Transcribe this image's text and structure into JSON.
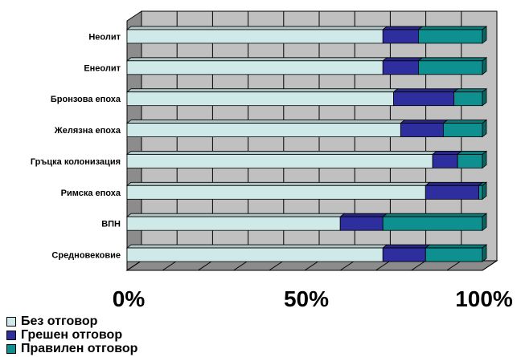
{
  "chart_data": {
    "type": "bar",
    "orientation": "horizontal",
    "stacked": "percent",
    "three_d": true,
    "categories": [
      "Неолит",
      "Енеолит",
      "Бронзова епоха",
      "Желязна епоха",
      "Гръцка колонизация",
      "Римска епоха",
      "ВПН",
      "Средновековие"
    ],
    "series": [
      {
        "name": "Без отговор",
        "color": "#cfe8e8",
        "values": [
          72,
          72,
          75,
          77,
          86,
          84,
          60,
          72
        ]
      },
      {
        "name": "Грешен отговор",
        "color": "#2e2e9e",
        "values": [
          10,
          10,
          17,
          12,
          7,
          15,
          12,
          12
        ]
      },
      {
        "name": "Правилен отговор",
        "color": "#0e9090",
        "values": [
          18,
          18,
          8,
          11,
          7,
          1,
          28,
          16
        ]
      }
    ],
    "x_ticks": [
      "0%",
      "50%",
      "100%"
    ],
    "xlim": [
      0,
      100
    ],
    "grid": true,
    "legend_position": "bottom-left",
    "colors": {
      "wall": "#c0c0c0",
      "floor": "#8c8c8c",
      "side": "#8c8c8c",
      "grid": "#000000"
    }
  }
}
